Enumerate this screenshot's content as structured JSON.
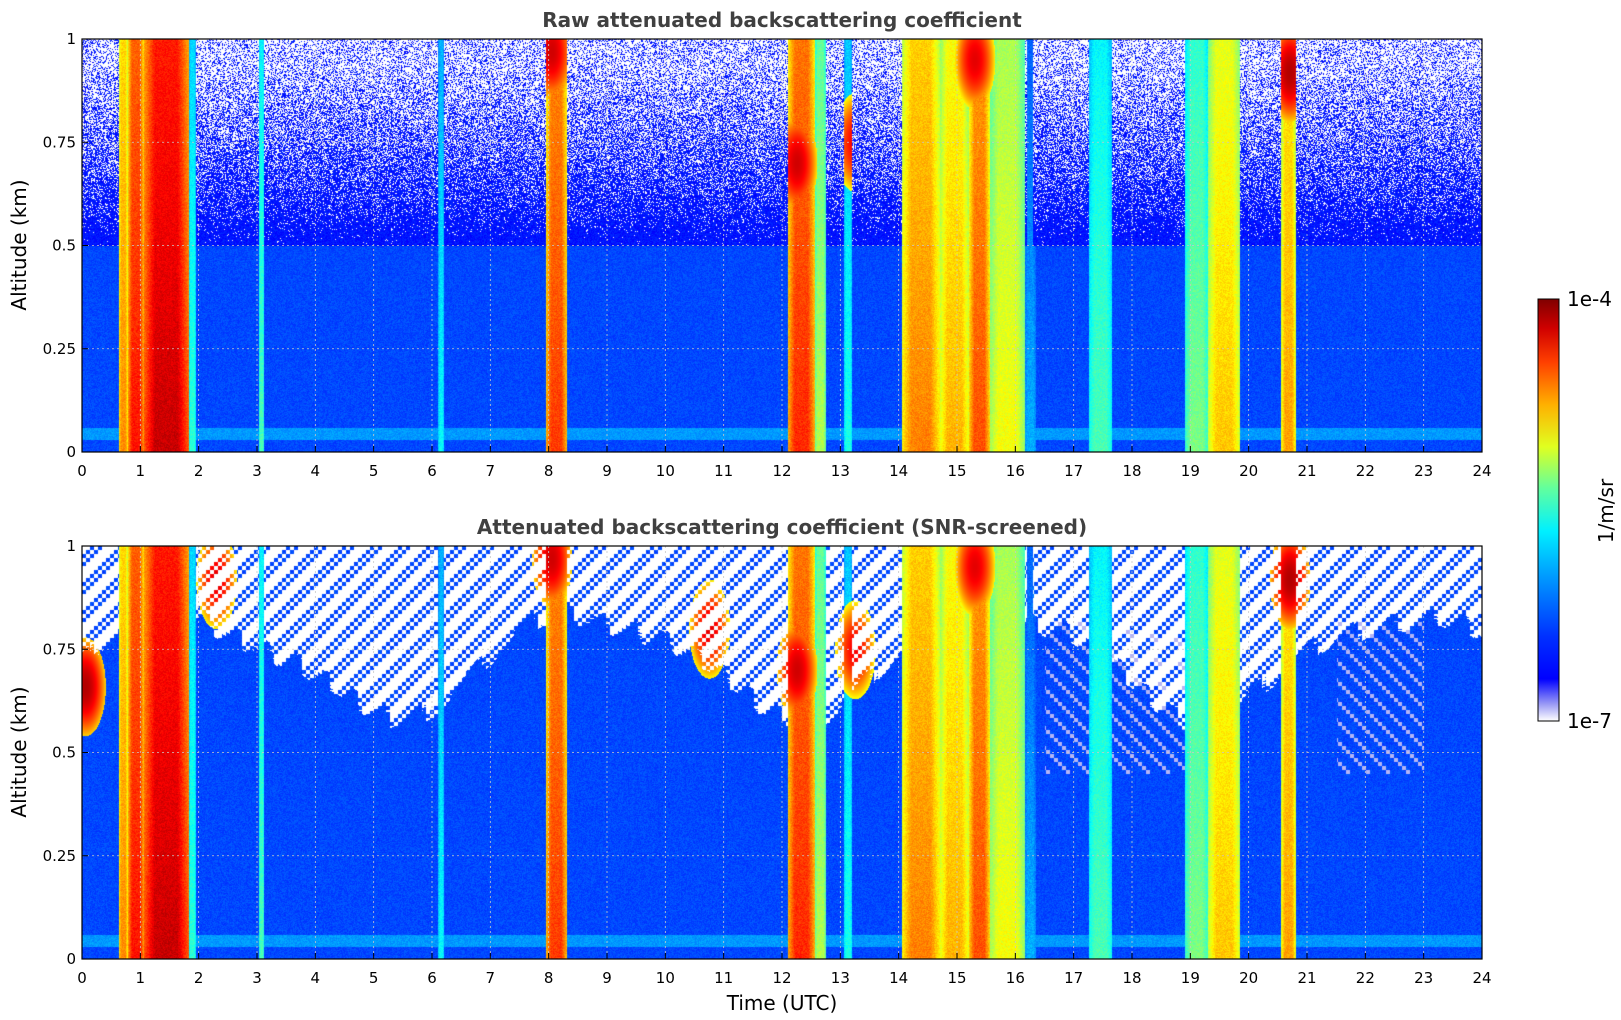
{
  "chart_data": [
    {
      "type": "heatmap",
      "title": "Raw attenuated backscattering coefficient",
      "xlabel": "",
      "ylabel": "Altitude (km)",
      "xlim": [
        0,
        24
      ],
      "ylim": [
        0,
        1
      ],
      "x_ticks": [
        "0",
        "1",
        "2",
        "3",
        "4",
        "5",
        "6",
        "7",
        "8",
        "9",
        "10",
        "11",
        "12",
        "13",
        "14",
        "15",
        "16",
        "17",
        "18",
        "19",
        "20",
        "21",
        "22",
        "23",
        "24"
      ],
      "y_ticks": [
        "0",
        "0.25",
        "0.5",
        "0.75",
        "1"
      ],
      "grid": true,
      "screened": false
    },
    {
      "type": "heatmap",
      "title": "Attenuated backscattering coefficient (SNR-screened)",
      "xlabel": "Time (UTC)",
      "ylabel": "Altitude (km)",
      "xlim": [
        0,
        24
      ],
      "ylim": [
        0,
        1
      ],
      "x_ticks": [
        "0",
        "1",
        "2",
        "3",
        "4",
        "5",
        "6",
        "7",
        "8",
        "9",
        "10",
        "11",
        "12",
        "13",
        "14",
        "15",
        "16",
        "17",
        "18",
        "19",
        "20",
        "21",
        "22",
        "23",
        "24"
      ],
      "y_ticks": [
        "0",
        "0.25",
        "0.5",
        "0.75",
        "1"
      ],
      "grid": true,
      "screened": true
    }
  ],
  "colorbar": {
    "label": "1/m/sr",
    "max_label": "1e-4",
    "min_label": "1e-7",
    "colormap": "jet",
    "scale": "log",
    "range": [
      1e-07,
      0.0001
    ]
  },
  "features": {
    "background_level": 0.17,
    "columns": [
      {
        "t0": 0.62,
        "t1": 0.78,
        "level": 0.74
      },
      {
        "t0": 0.78,
        "t1": 1.05,
        "level": 0.86
      },
      {
        "t0": 1.05,
        "t1": 1.82,
        "level": 0.93
      },
      {
        "t0": 1.82,
        "t1": 1.95,
        "level": 0.42
      },
      {
        "t0": 3.02,
        "t1": 3.12,
        "level": 0.45
      },
      {
        "t0": 6.1,
        "t1": 6.2,
        "level": 0.38
      },
      {
        "t0": 7.95,
        "t1": 8.3,
        "level": 0.82
      },
      {
        "t0": 12.1,
        "t1": 12.55,
        "level": 0.84
      },
      {
        "t0": 12.55,
        "t1": 12.75,
        "level": 0.55
      },
      {
        "t0": 13.05,
        "t1": 13.2,
        "level": 0.4
      },
      {
        "t0": 14.05,
        "t1": 14.7,
        "level": 0.75
      },
      {
        "t0": 14.7,
        "t1": 15.2,
        "level": 0.7
      },
      {
        "t0": 15.2,
        "t1": 15.55,
        "level": 0.8
      },
      {
        "t0": 15.55,
        "t1": 16.15,
        "level": 0.62
      },
      {
        "t0": 16.15,
        "t1": 16.35,
        "level": 0.3
      },
      {
        "t0": 17.25,
        "t1": 17.65,
        "level": 0.45
      },
      {
        "t0": 18.9,
        "t1": 19.3,
        "level": 0.5
      },
      {
        "t0": 19.3,
        "t1": 19.85,
        "level": 0.68
      },
      {
        "t0": 20.55,
        "t1": 20.8,
        "level": 0.72
      }
    ],
    "upper_clouds": [
      {
        "t": 0.05,
        "alt": 0.66,
        "level": 0.95
      },
      {
        "t": 2.3,
        "alt": 0.92,
        "level": 0.9
      },
      {
        "t": 8.05,
        "alt": 0.97,
        "level": 0.92
      },
      {
        "t": 10.75,
        "alt": 0.8,
        "level": 0.9
      },
      {
        "t": 12.25,
        "alt": 0.7,
        "level": 0.92
      },
      {
        "t": 13.25,
        "alt": 0.75,
        "level": 0.88
      },
      {
        "t": 15.3,
        "alt": 0.95,
        "level": 0.9
      },
      {
        "t": 20.7,
        "alt": 0.92,
        "level": 0.95
      }
    ]
  }
}
